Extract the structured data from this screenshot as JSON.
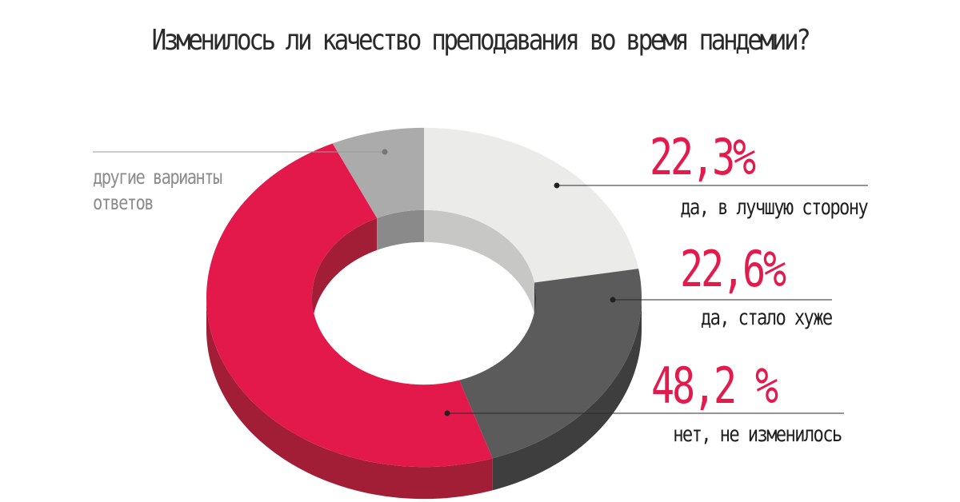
{
  "chart_data": {
    "type": "pie",
    "variant": "3d-donut",
    "title": "Изменилось ли качество преподавания во время пандемии?",
    "slices": [
      {
        "label": "да, в лучшую сторону",
        "value": 22.3,
        "display": "22,3%",
        "color": "#ebebea",
        "side_color": "#c7c7c6"
      },
      {
        "label": "да, стало хуже",
        "value": 22.6,
        "display": "22,6%",
        "color": "#5b5b5b",
        "side_color": "#3e3e3e"
      },
      {
        "label": "нет, не изменилось",
        "value": 48.2,
        "display": "48,2 %",
        "color": "#e4194b",
        "side_color": "#a11e36"
      },
      {
        "label": "другие варианты ответов",
        "label_lines": [
          "другие варианты",
          "ответов"
        ],
        "value": 6.9,
        "display": "",
        "color": "#ababab",
        "side_color": "#8a8a8a"
      }
    ],
    "legend": "none"
  }
}
